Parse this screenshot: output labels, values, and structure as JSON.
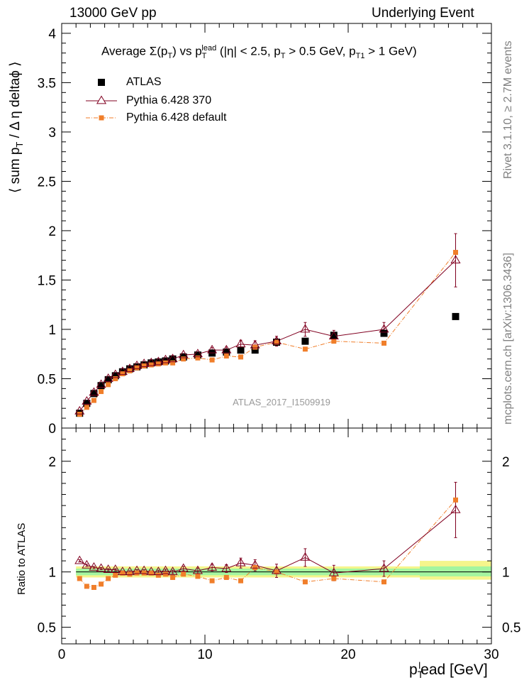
{
  "header": {
    "left": "13000 GeV pp",
    "right": "Underlying Event"
  },
  "side_labels": {
    "rivet": "Rivet 3.1.10, ≥ 2.7M events",
    "mcplots": "mcplots.cern.ch [arXiv:1306.3436]"
  },
  "colors": {
    "data": "#000000",
    "tune370": "#800020",
    "default": "#f07e2a",
    "band_inner": "#a4f5a0",
    "band_outer": "#f5f58c"
  },
  "chart_data": [
    {
      "type": "scatter",
      "title": "Average Σ(p_T) vs p_T^lead (|η| < 2.5, p_T > 0.5 GeV, p_T1 > 1 GeV)",
      "title_parts": {
        "a": "Average Σ(p",
        "a_sub": "T",
        "b": ") vs p",
        "b_sub": "T",
        "b_sup": "lead",
        "c": " (|η| < 2.5, p",
        "c_sub": "T",
        "d": " > 0.5 GeV, p",
        "d_sub": "T1",
        "e": " > 1 GeV)"
      },
      "ylabel": "⟨ sum p_T / Δ η deltaϕ ⟩",
      "ylabel_parts": {
        "a": "⟨ sum p",
        "a_sub": "T",
        "b": " / Δ η deltaϕ ⟩"
      },
      "xlim": [
        0,
        30
      ],
      "ylim": [
        0,
        4.1
      ],
      "yticks": [
        {
          "v": 0,
          "t": "0"
        },
        {
          "v": 0.5,
          "t": "0.5"
        },
        {
          "v": 1,
          "t": "1"
        },
        {
          "v": 1.5,
          "t": "1.5"
        },
        {
          "v": 2,
          "t": "2"
        },
        {
          "v": 2.5,
          "t": "2.5"
        },
        {
          "v": 3,
          "t": "3"
        },
        {
          "v": 3.5,
          "t": "3.5"
        },
        {
          "v": 4,
          "t": "4"
        }
      ],
      "watermark": "ATLAS_2017_I1509919",
      "x": [
        1.25,
        1.75,
        2.25,
        2.75,
        3.25,
        3.75,
        4.25,
        4.75,
        5.25,
        5.75,
        6.25,
        6.75,
        7.25,
        7.75,
        8.5,
        9.5,
        10.5,
        11.5,
        12.5,
        13.5,
        15,
        17,
        19,
        22.5,
        27.5
      ],
      "series": [
        {
          "name": "ATLAS",
          "values": [
            0.15,
            0.25,
            0.35,
            0.43,
            0.49,
            0.53,
            0.57,
            0.6,
            0.62,
            0.64,
            0.66,
            0.67,
            0.68,
            0.7,
            0.72,
            0.74,
            0.76,
            0.77,
            0.79,
            0.79,
            0.87,
            0.88,
            0.94,
            0.96,
            1.13
          ]
        },
        {
          "name": "Pythia 6.428 370",
          "values": [
            0.17,
            0.27,
            0.36,
            0.44,
            0.5,
            0.54,
            0.57,
            0.6,
            0.63,
            0.65,
            0.66,
            0.67,
            0.69,
            0.7,
            0.74,
            0.75,
            0.79,
            0.79,
            0.85,
            0.84,
            0.88,
            1.0,
            0.93,
            1.0,
            1.7
          ],
          "errors": [
            0.005,
            0.005,
            0.006,
            0.006,
            0.007,
            0.007,
            0.008,
            0.008,
            0.008,
            0.009,
            0.01,
            0.01,
            0.01,
            0.012,
            0.015,
            0.02,
            0.025,
            0.03,
            0.04,
            0.045,
            0.05,
            0.07,
            0.06,
            0.07,
            0.27
          ]
        },
        {
          "name": "Pythia 6.428 default",
          "values": [
            0.14,
            0.21,
            0.28,
            0.37,
            0.44,
            0.5,
            0.55,
            0.58,
            0.61,
            0.63,
            0.64,
            0.65,
            0.66,
            0.66,
            0.7,
            0.71,
            0.69,
            0.73,
            0.72,
            0.82,
            0.87,
            0.8,
            0.88,
            0.86,
            1.78
          ]
        }
      ]
    },
    {
      "type": "scatter",
      "xlabel": "p_T^lead [GeV]",
      "xlabel_parts": {
        "a": "p",
        "a_sub": "T",
        "a_sup": "l",
        "b": "ead [GeV]"
      },
      "ylabel": "Ratio to ATLAS",
      "xlim": [
        0,
        30
      ],
      "ylim": [
        0.35,
        2.3
      ],
      "xticks": [
        {
          "v": 0,
          "t": "0"
        },
        {
          "v": 10,
          "t": "10"
        },
        {
          "v": 20,
          "t": "20"
        },
        {
          "v": 30,
          "t": "30"
        }
      ],
      "yticks": [
        {
          "v": 0.5,
          "t": "0.5"
        },
        {
          "v": 1,
          "t": "1"
        },
        {
          "v": 2,
          "t": "2"
        }
      ],
      "x": [
        1.25,
        1.75,
        2.25,
        2.75,
        3.25,
        3.75,
        4.25,
        4.75,
        5.25,
        5.75,
        6.25,
        6.75,
        7.25,
        7.75,
        8.5,
        9.5,
        10.5,
        11.5,
        12.5,
        13.5,
        15,
        17,
        19,
        22.5,
        27.5
      ],
      "series": [
        {
          "name": "Pythia 6.428 370",
          "values": [
            1.1,
            1.06,
            1.04,
            1.03,
            1.02,
            1.02,
            1.0,
            1.0,
            1.01,
            1.01,
            1.0,
            1.0,
            1.01,
            1.0,
            1.03,
            1.01,
            1.04,
            1.03,
            1.08,
            1.06,
            1.01,
            1.13,
            0.99,
            1.03,
            1.56
          ],
          "errors": [
            0.01,
            0.01,
            0.01,
            0.01,
            0.01,
            0.01,
            0.01,
            0.01,
            0.01,
            0.01,
            0.01,
            0.015,
            0.015,
            0.015,
            0.02,
            0.025,
            0.03,
            0.035,
            0.045,
            0.05,
            0.06,
            0.08,
            0.07,
            0.07,
            0.25
          ]
        },
        {
          "name": "Pythia 6.428 default",
          "values": [
            0.94,
            0.87,
            0.86,
            0.89,
            0.94,
            0.97,
            0.99,
            0.98,
            0.99,
            0.99,
            0.99,
            0.97,
            0.98,
            0.95,
            0.98,
            0.96,
            0.92,
            0.95,
            0.92,
            1.04,
            1.0,
            0.91,
            0.94,
            0.91,
            1.65
          ]
        }
      ],
      "bands": [
        {
          "x0": 1.0,
          "x1": 25.0,
          "inner": [
            0.97,
            1.03
          ],
          "outer": [
            0.95,
            1.05
          ]
        },
        {
          "x0": 25.0,
          "x1": 30.0,
          "inner": [
            0.96,
            1.05
          ],
          "outer": [
            0.93,
            1.1
          ]
        }
      ]
    }
  ]
}
